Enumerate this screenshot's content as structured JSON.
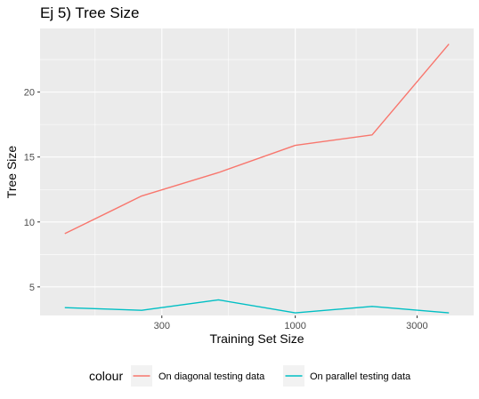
{
  "chart_data": {
    "type": "line",
    "title": "Ej 5) Tree Size",
    "xlabel": "Training Set Size",
    "ylabel": "Tree Size",
    "x_scale": "log10",
    "xlim": [
      100,
      5000
    ],
    "ylim": [
      2.8,
      24.9
    ],
    "x_ticks": [
      300,
      1000,
      3000
    ],
    "x_tick_labels": [
      "300",
      "1000",
      "3000"
    ],
    "y_ticks": [
      5,
      10,
      15,
      20
    ],
    "y_tick_labels": [
      "5",
      "10",
      "15",
      "20"
    ],
    "grid": true,
    "legend": {
      "title": "colour",
      "position": "bottom"
    },
    "series": [
      {
        "name": "On diagonal testing data",
        "color": "#F8766D",
        "x": [
          125,
          250,
          500,
          1000,
          2000,
          4000
        ],
        "y": [
          9.1,
          12.0,
          13.8,
          15.9,
          16.7,
          23.7
        ]
      },
      {
        "name": "On parallel testing data",
        "color": "#00BFC4",
        "x": [
          125,
          250,
          500,
          1000,
          2000,
          4000
        ],
        "y": [
          3.4,
          3.2,
          4.0,
          3.0,
          3.5,
          3.0
        ]
      }
    ]
  },
  "colors": {
    "panel_background": "#EBEBEB",
    "major_grid": "#FFFFFF",
    "tick_text": "#4D4D4D",
    "axis_tick": "#333333"
  }
}
